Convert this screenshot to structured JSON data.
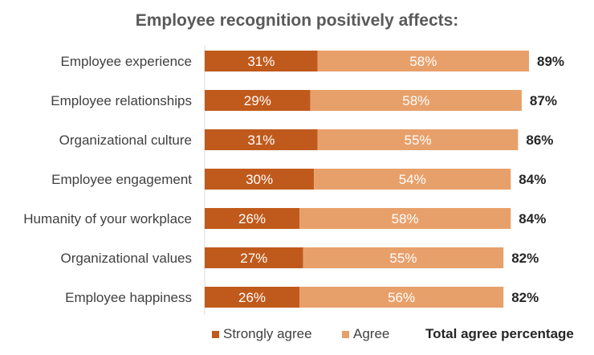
{
  "chart_data": {
    "type": "bar",
    "orientation": "horizontal",
    "stacked": true,
    "title": "Employee recognition positively affects:",
    "categories": [
      "Employee experience",
      "Employee relationships",
      "Organizational culture",
      "Employee engagement",
      "Humanity of your workplace",
      "Organizational values",
      "Employee happiness"
    ],
    "series": [
      {
        "name": "Strongly agree",
        "values": [
          31,
          29,
          31,
          30,
          26,
          27,
          26
        ],
        "labels": [
          "31%",
          "29%",
          "31%",
          "30%",
          "26%",
          "27%",
          "26%"
        ],
        "color": "#C05A1C"
      },
      {
        "name": "Agree",
        "values": [
          58,
          58,
          55,
          54,
          58,
          55,
          56
        ],
        "labels": [
          "58%",
          "58%",
          "55%",
          "54%",
          "58%",
          "55%",
          "56%"
        ],
        "color": "#E8A06B"
      }
    ],
    "totals": {
      "name": "Total agree percentage",
      "values": [
        89,
        87,
        86,
        84,
        84,
        82,
        82
      ],
      "labels": [
        "89%",
        "87%",
        "86%",
        "84%",
        "84%",
        "82%",
        "82%"
      ]
    },
    "xlim": [
      0,
      89
    ],
    "grid": false,
    "legend": "bottom"
  }
}
